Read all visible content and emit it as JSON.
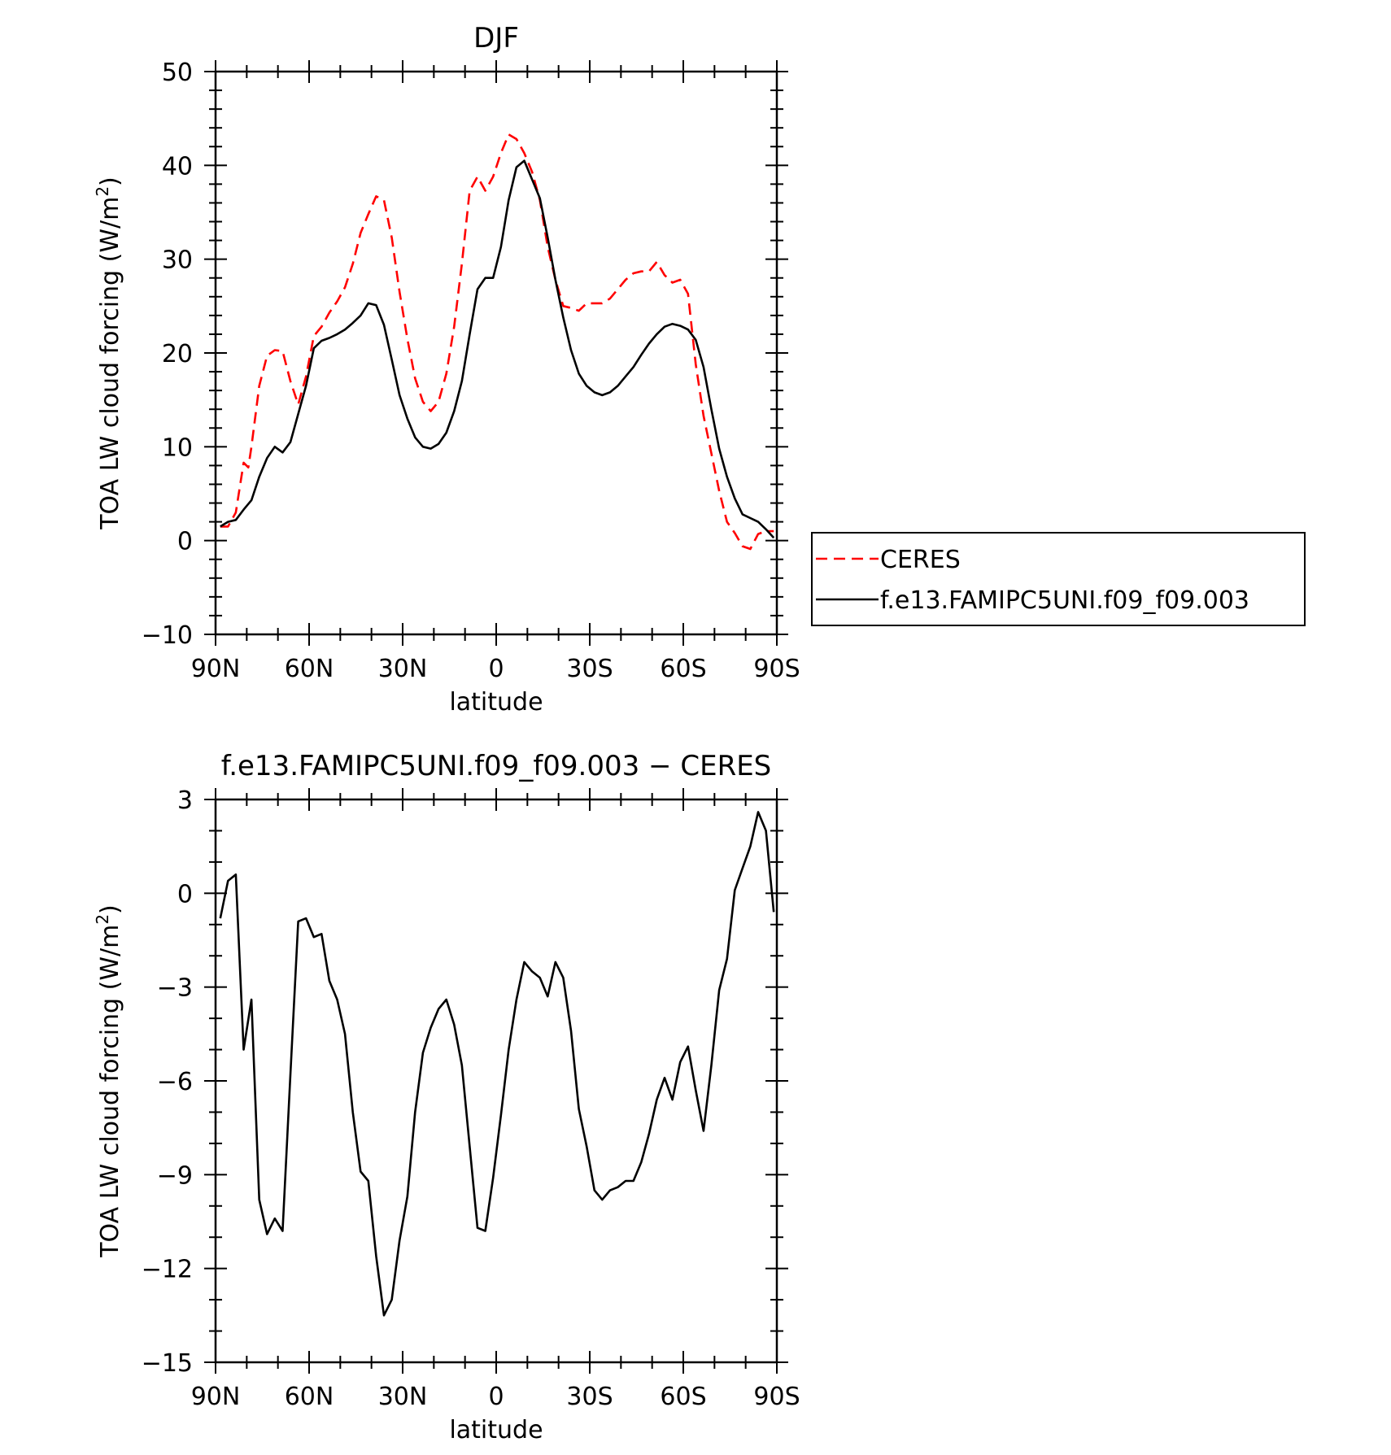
{
  "chart_data": [
    {
      "type": "line",
      "title": "DJF",
      "xlabel": "latitude",
      "ylabel": "TOA LW cloud forcing (W/m",
      "ylabel_sup": "2",
      "ylabel_close": ")",
      "xlim": [
        90,
        -90
      ],
      "ylim": [
        -10,
        50
      ],
      "x_tick_values": [
        90,
        60,
        30,
        0,
        -30,
        -60,
        -90
      ],
      "x_tick_labels": [
        "90N",
        "60N",
        "30N",
        "0",
        "30S",
        "60S",
        "90S"
      ],
      "y_tick_values": [
        -10,
        0,
        10,
        20,
        30,
        40,
        50
      ],
      "y_tick_labels": [
        "−10",
        "0",
        "10",
        "20",
        "30",
        "40",
        "50"
      ],
      "grid": false,
      "legend_position": "outside-right",
      "series": [
        {
          "name": "CERES",
          "color": "#ff0000",
          "dash": "dashed",
          "x": [
            88.5,
            86,
            83.5,
            81,
            79.5,
            78.5,
            76,
            73.5,
            71,
            68.5,
            66,
            63.5,
            61,
            58.5,
            56,
            53.5,
            51,
            48.5,
            46,
            43.5,
            41,
            38.5,
            36,
            33.5,
            31,
            28.5,
            26,
            23.5,
            21,
            18.5,
            16,
            13.5,
            11,
            8.5,
            6,
            3.5,
            1,
            -1.5,
            -4,
            -6.5,
            -9,
            -11.5,
            -14,
            -16.5,
            -19,
            -21.5,
            -24,
            -26.5,
            -29,
            -31.5,
            -34,
            -36.5,
            -39,
            -41.5,
            -44,
            -46.5,
            -49,
            -51.5,
            -54,
            -56.5,
            -59,
            -61.5,
            -64,
            -66.5,
            -69,
            -71.5,
            -74,
            -76.5,
            -79,
            -81.5,
            -84,
            -86.5,
            -89
          ],
          "y": [
            1.5,
            1.5,
            3.0,
            8.3,
            7.8,
            10.0,
            16.5,
            19.7,
            20.3,
            20.2,
            17.0,
            14.5,
            17.5,
            21.8,
            22.8,
            24.3,
            25.5,
            27.0,
            29.5,
            32.8,
            34.8,
            36.7,
            36.3,
            32.3,
            26.5,
            21.5,
            17.3,
            14.8,
            13.8,
            14.8,
            17.8,
            22.8,
            29.5,
            37.3,
            38.8,
            37.3,
            38.8,
            41.3,
            43.3,
            42.8,
            41.3,
            39.3,
            36.3,
            31.3,
            27.8,
            25.0,
            24.8,
            24.5,
            25.3,
            25.3,
            25.3,
            25.8,
            26.8,
            27.8,
            28.5,
            28.7,
            28.7,
            29.7,
            28.3,
            27.5,
            27.8,
            26.3,
            18.8,
            13.3,
            9.3,
            5.3,
            2.0,
            0.8,
            -0.6,
            -0.9,
            0.7,
            1.0,
            1.0
          ]
        },
        {
          "name": "f.e13.FAMIPC5UNI.f09_f09.003",
          "color": "#000000",
          "dash": "solid",
          "x": [
            88.5,
            86,
            83.5,
            81,
            78.5,
            76,
            73.5,
            71,
            68.5,
            66,
            63.5,
            61,
            58.5,
            56,
            53.5,
            51,
            48.5,
            46,
            43.5,
            41,
            38.5,
            36,
            33.5,
            31,
            28.5,
            26,
            23.5,
            21,
            18.5,
            16,
            13.5,
            11,
            8.5,
            6,
            3.5,
            1,
            -1.5,
            -4,
            -6.5,
            -9,
            -11.5,
            -14,
            -16.5,
            -19,
            -21.5,
            -24,
            -26.5,
            -29,
            -31.5,
            -34,
            -36.5,
            -39,
            -41.5,
            -44,
            -46.5,
            -49,
            -51.5,
            -54,
            -56.5,
            -59,
            -61.5,
            -64,
            -66.5,
            -69,
            -71.5,
            -74,
            -76.5,
            -79,
            -81.5,
            -84,
            -86.5,
            -89
          ],
          "y": [
            1.5,
            2.0,
            2.2,
            3.3,
            4.3,
            6.8,
            8.8,
            10.0,
            9.4,
            10.5,
            13.5,
            16.5,
            20.5,
            21.3,
            21.6,
            22.0,
            22.5,
            23.2,
            24.0,
            25.3,
            25.1,
            23.0,
            19.3,
            15.5,
            13.0,
            11.0,
            10.0,
            9.8,
            10.3,
            11.5,
            13.8,
            17.0,
            22.0,
            26.8,
            28.0,
            28.0,
            31.3,
            36.3,
            39.8,
            40.5,
            38.5,
            36.5,
            32.3,
            27.8,
            23.8,
            20.3,
            17.8,
            16.5,
            15.8,
            15.5,
            15.8,
            16.5,
            17.5,
            18.5,
            19.8,
            21.0,
            22.0,
            22.8,
            23.1,
            22.9,
            22.5,
            21.4,
            18.5,
            14.0,
            9.8,
            6.8,
            4.5,
            2.8,
            2.4,
            2.0,
            1.2,
            0.3
          ]
        }
      ]
    },
    {
      "type": "line",
      "title": "f.e13.FAMIPC5UNI.f09_f09.003 − CERES",
      "xlabel": "latitude",
      "ylabel": "TOA LW cloud forcing (W/m",
      "ylabel_sup": "2",
      "ylabel_close": ")",
      "xlim": [
        90,
        -90
      ],
      "ylim": [
        -15,
        3
      ],
      "x_tick_values": [
        90,
        60,
        30,
        0,
        -30,
        -60,
        -90
      ],
      "x_tick_labels": [
        "90N",
        "60N",
        "30N",
        "0",
        "30S",
        "60S",
        "90S"
      ],
      "y_tick_values": [
        -15,
        -12,
        -9,
        -6,
        -3,
        0,
        3
      ],
      "y_tick_labels": [
        "−15",
        "−12",
        "−9",
        "−6",
        "−3",
        "0",
        "3"
      ],
      "grid": false,
      "series": [
        {
          "color": "#000000",
          "dash": "solid",
          "x": [
            88.5,
            86,
            83.5,
            81,
            78.5,
            76,
            73.5,
            71,
            68.5,
            66,
            63.5,
            61,
            58.5,
            56,
            53.5,
            51,
            48.5,
            46,
            43.5,
            41,
            38.5,
            36,
            33.5,
            31,
            28.5,
            26,
            23.5,
            21,
            18.5,
            16,
            13.5,
            11,
            8.5,
            6,
            3.5,
            1,
            -1.5,
            -4,
            -6.5,
            -9,
            -11.5,
            -14,
            -16.5,
            -19,
            -21.5,
            -24,
            -26.5,
            -29,
            -31.5,
            -34,
            -36.5,
            -39,
            -41.5,
            -44,
            -46.5,
            -49,
            -51.5,
            -54,
            -56.5,
            -59,
            -61.5,
            -64,
            -66.5,
            -69,
            -71.5,
            -74,
            -76.5,
            -79,
            -81.5,
            -84,
            -86.5,
            -89
          ],
          "y": [
            -0.8,
            0.4,
            0.6,
            -5.0,
            -3.4,
            -9.8,
            -10.9,
            -10.4,
            -10.8,
            -5.8,
            -0.9,
            -0.8,
            -1.4,
            -1.3,
            -2.8,
            -3.4,
            -4.5,
            -7.0,
            -8.9,
            -9.2,
            -11.6,
            -13.5,
            -13.0,
            -11.1,
            -9.7,
            -7.0,
            -5.1,
            -4.3,
            -3.7,
            -3.4,
            -4.2,
            -5.5,
            -8.1,
            -10.7,
            -10.8,
            -9.1,
            -7.1,
            -5.0,
            -3.4,
            -2.2,
            -2.5,
            -2.7,
            -3.3,
            -2.2,
            -2.7,
            -4.4,
            -6.9,
            -8.1,
            -9.5,
            -9.8,
            -9.5,
            -9.4,
            -9.2,
            -9.2,
            -8.6,
            -7.7,
            -6.6,
            -5.9,
            -6.6,
            -5.4,
            -4.9,
            -6.3,
            -7.6,
            -5.5,
            -3.1,
            -2.1,
            0.1,
            0.8,
            1.5,
            2.6,
            2.0,
            -0.6
          ]
        }
      ]
    }
  ]
}
